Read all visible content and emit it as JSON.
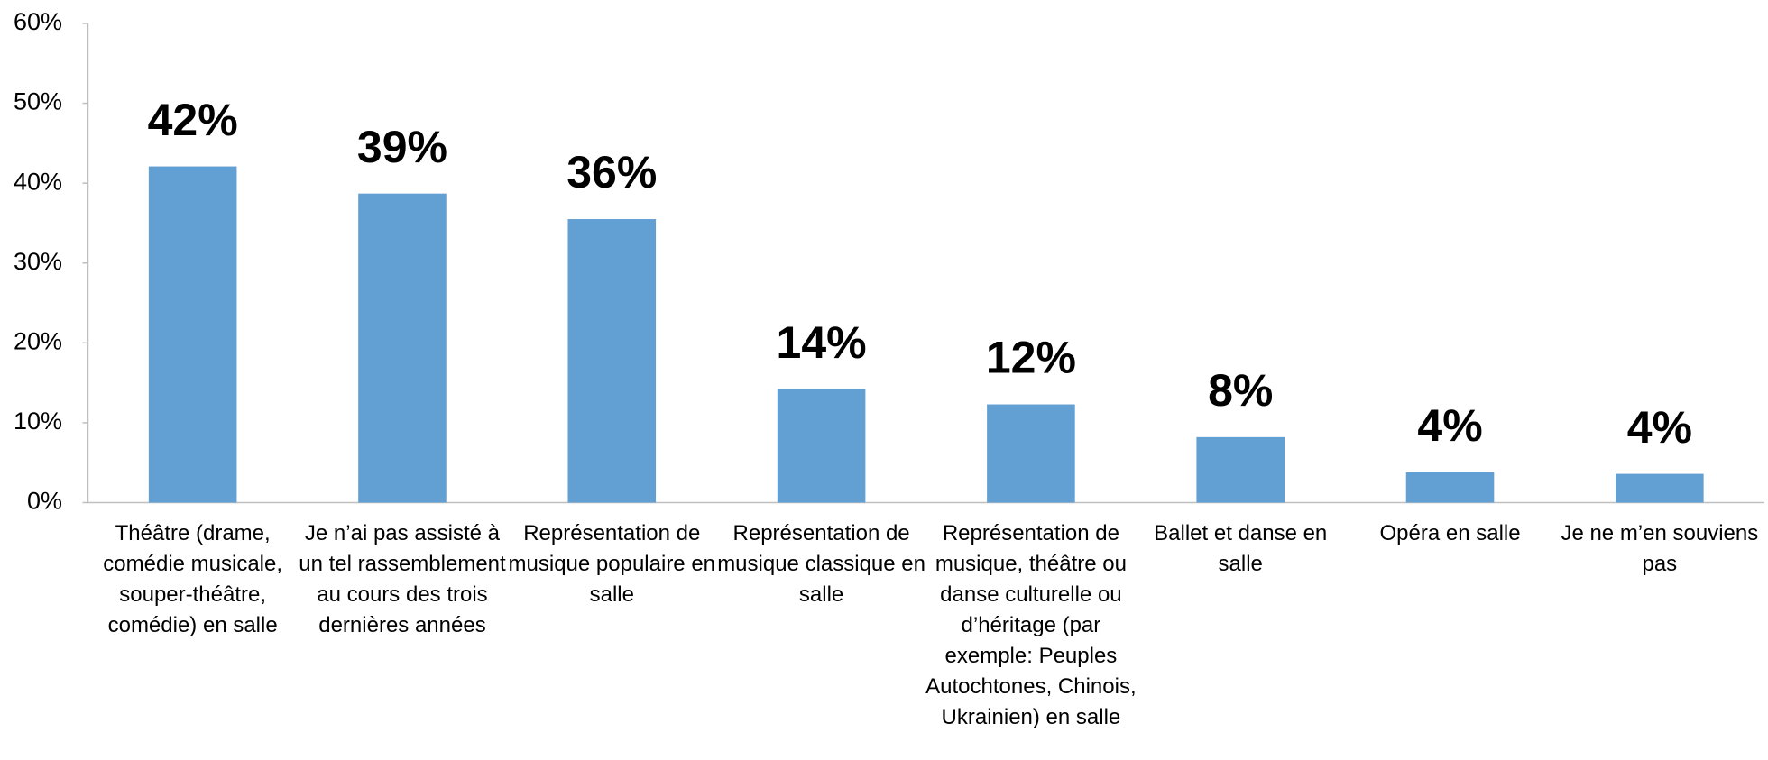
{
  "chart_data": {
    "type": "bar",
    "categories": [
      "Théâtre (drame, comédie musicale, souper-théâtre, comédie) en salle",
      "Je n’ai pas assisté à un tel rassemblement au cours des trois dernières années",
      "Représentation de musique populaire en salle",
      "Représentation de musique classique en salle",
      "Représentation de musique, théâtre ou danse culturelle ou d’héritage (par exemple: Peuples Autochtones, Chinois, Ukrainien) en salle",
      "Ballet et danse en salle",
      "Opéra en salle",
      "Je ne m’en souviens pas"
    ],
    "values": [
      42.1,
      38.7,
      35.5,
      14.2,
      12.3,
      8.2,
      3.8,
      3.6
    ],
    "value_labels": [
      "42%",
      "39%",
      "36%",
      "14%",
      "12%",
      "8%",
      "4%",
      "4%"
    ],
    "color": "#629fd2",
    "ylim": [
      0,
      60
    ],
    "yticks": [
      {
        "value": 0,
        "label": "0%"
      },
      {
        "value": 10,
        "label": "10%"
      },
      {
        "value": 20,
        "label": "20%"
      },
      {
        "value": 30,
        "label": "30%"
      },
      {
        "value": 40,
        "label": "40%"
      },
      {
        "value": 50,
        "label": "50%"
      },
      {
        "value": 60,
        "label": "60%"
      }
    ]
  }
}
